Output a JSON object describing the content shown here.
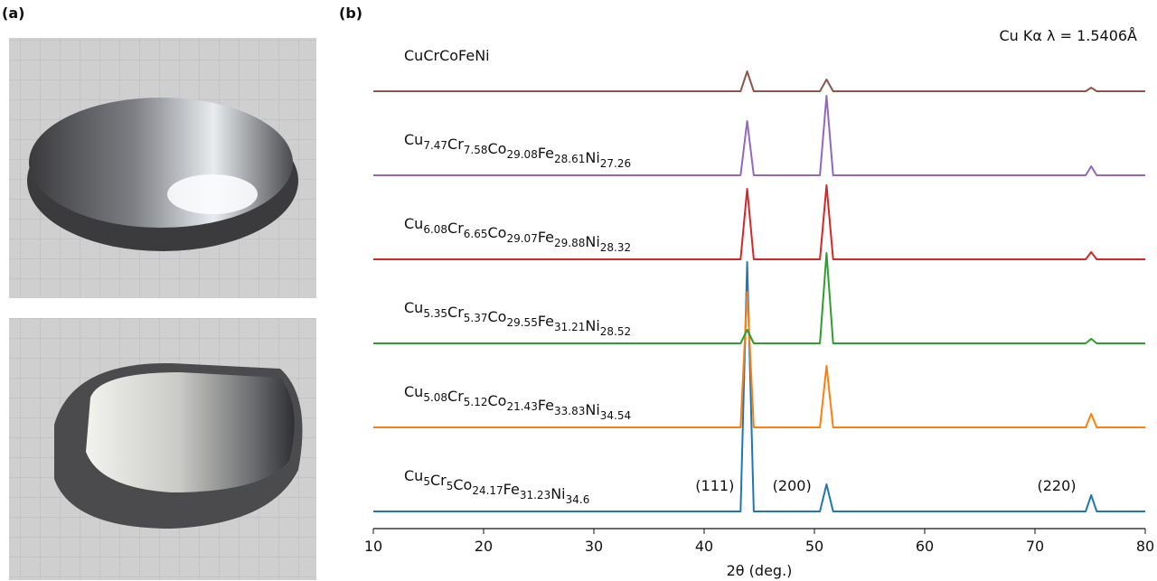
{
  "panel_labels": [
    "(a)",
    "(b)"
  ],
  "chart_data": {
    "type": "line",
    "xlabel": "2θ (deg.)",
    "annotation": "Cu Kα  λ = 1.5406Å",
    "peak_labels": [
      {
        "x": 44,
        "label": "(111)"
      },
      {
        "x": 51,
        "label": "(200)"
      },
      {
        "x": 75,
        "label": "(220)"
      }
    ],
    "xlim": [
      10,
      80
    ],
    "xticks": [
      10,
      20,
      30,
      40,
      50,
      60,
      70,
      80
    ],
    "x": [
      10,
      20,
      30,
      40,
      43.3,
      43.9,
      44.5,
      50.5,
      51.1,
      51.7,
      60,
      70,
      74.6,
      75.1,
      75.6,
      80
    ],
    "series": [
      {
        "name": "Cu5Cr5Co24.17Fe31.23Ni34.6",
        "color": "#1f77b4",
        "values": [
          0,
          0,
          0,
          0,
          0,
          276,
          0,
          0,
          30,
          0,
          0,
          0,
          0,
          18,
          0,
          0
        ]
      },
      {
        "name": "Cu5.08Cr5.12Co21.43Fe33.83Ni34.54",
        "color": "#ff7f0e",
        "values": [
          0,
          0,
          0,
          0,
          0,
          150,
          0,
          0,
          68,
          0,
          0,
          0,
          0,
          15,
          0,
          0
        ]
      },
      {
        "name": "Cu5.35Cr5.37Co29.55Fe31.21Ni28.52",
        "color": "#2ca02c",
        "values": [
          0,
          0,
          0,
          0,
          0,
          15,
          0,
          0,
          100,
          0,
          0,
          0,
          0,
          5,
          0,
          0
        ]
      },
      {
        "name": "Cu6.08Cr6.65Co29.07Fe29.88Ni28.32",
        "color": "#d62728",
        "values": [
          0,
          0,
          0,
          0,
          0,
          78,
          0,
          0,
          82,
          0,
          0,
          0,
          0,
          8,
          0,
          0
        ]
      },
      {
        "name": "Cu7.47Cr7.58Co29.08Fe28.61Ni27.26",
        "color": "#9467bd",
        "values": [
          0,
          0,
          0,
          0,
          0,
          60,
          0,
          0,
          88,
          0,
          0,
          0,
          0,
          10,
          0,
          0
        ]
      },
      {
        "name": "CuCrCoFeNi",
        "color": "#8c564b",
        "values": [
          0,
          0,
          0,
          0,
          0,
          22,
          0,
          0,
          13,
          0,
          0,
          0,
          0,
          4,
          0,
          0
        ]
      }
    ]
  }
}
